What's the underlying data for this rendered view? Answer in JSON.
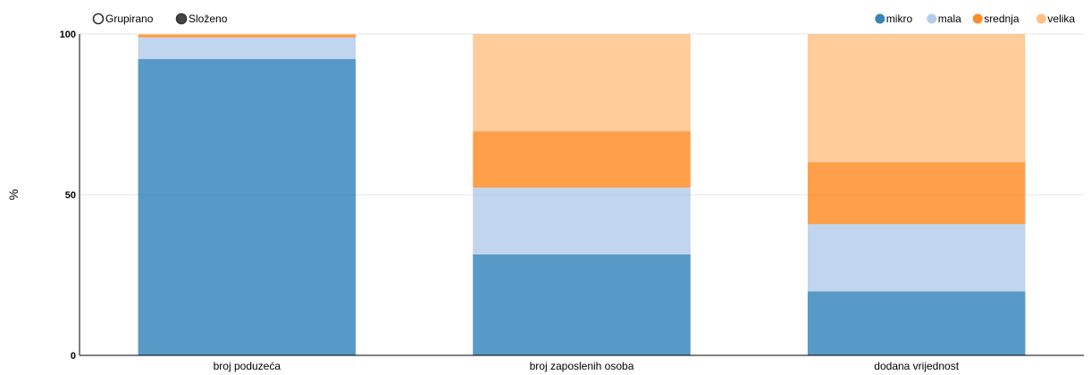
{
  "controls": {
    "grouped_label": "Grupirano",
    "stacked_label": "Složeno",
    "selected": "stacked"
  },
  "chart_data": {
    "type": "bar",
    "stacked": true,
    "categories": [
      "broj poduzeća",
      "broj zaposlenih osoba",
      "dodana vrijednost"
    ],
    "series": [
      {
        "name": "mikro",
        "color": "#1f77b4",
        "values": [
          92.2,
          31.4,
          19.9
        ]
      },
      {
        "name": "mala",
        "color": "#aec7e8",
        "values": [
          6.7,
          20.8,
          20.9
        ]
      },
      {
        "name": "srednja",
        "color": "#ff7f0e",
        "values": [
          0.9,
          17.5,
          19.3
        ]
      },
      {
        "name": "velika",
        "color": "#ffbb78",
        "values": [
          0.2,
          30.3,
          39.9
        ]
      }
    ],
    "ylabel": "%",
    "xlabel": "",
    "ylim": [
      0,
      100
    ],
    "yticks": [
      "0",
      "50",
      "100"
    ],
    "grid": true,
    "legend_position": "top-right"
  }
}
